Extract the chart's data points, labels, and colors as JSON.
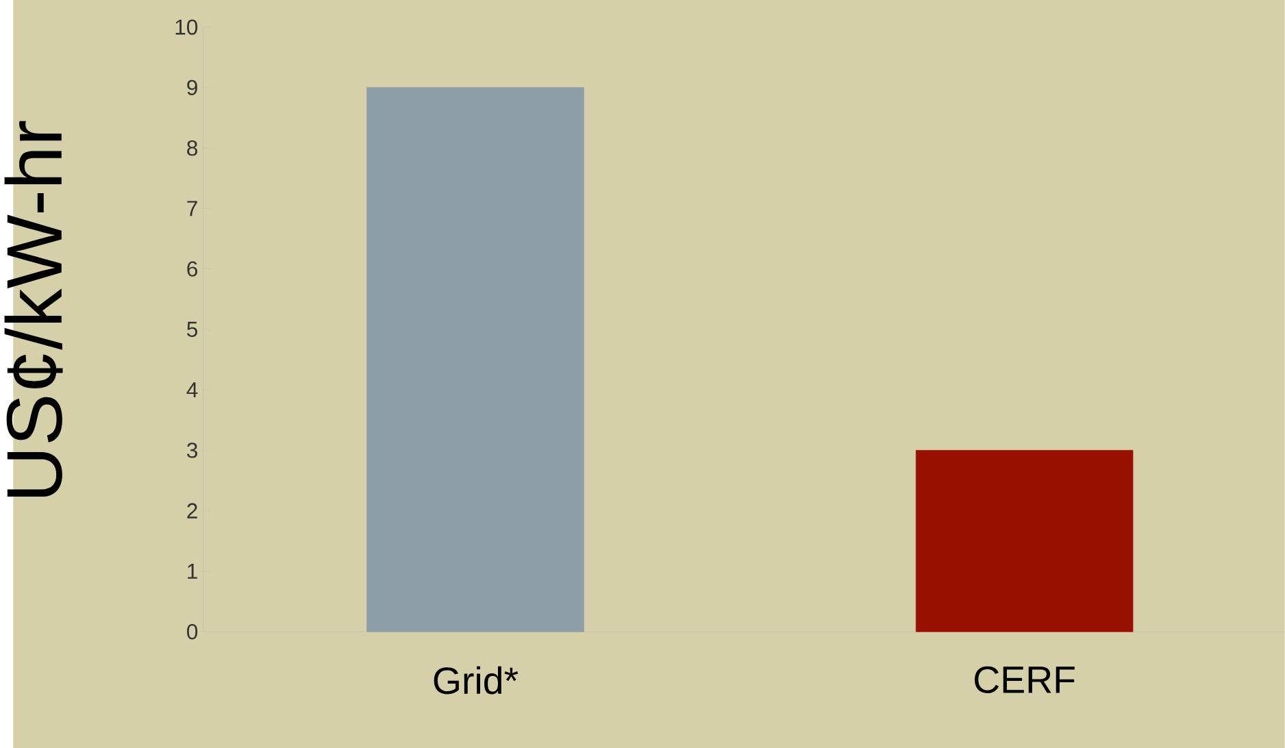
{
  "chart_data": {
    "type": "bar",
    "ylabel": "US¢/kW-hr",
    "categories": [
      "Grid*",
      "CERF"
    ],
    "values": [
      9,
      3
    ],
    "colors": [
      "#8e9ea8",
      "#9a1000"
    ],
    "ylim": [
      0,
      10
    ],
    "yticks": [
      0,
      1,
      2,
      3,
      4,
      5,
      6,
      7,
      8,
      9,
      10
    ]
  }
}
